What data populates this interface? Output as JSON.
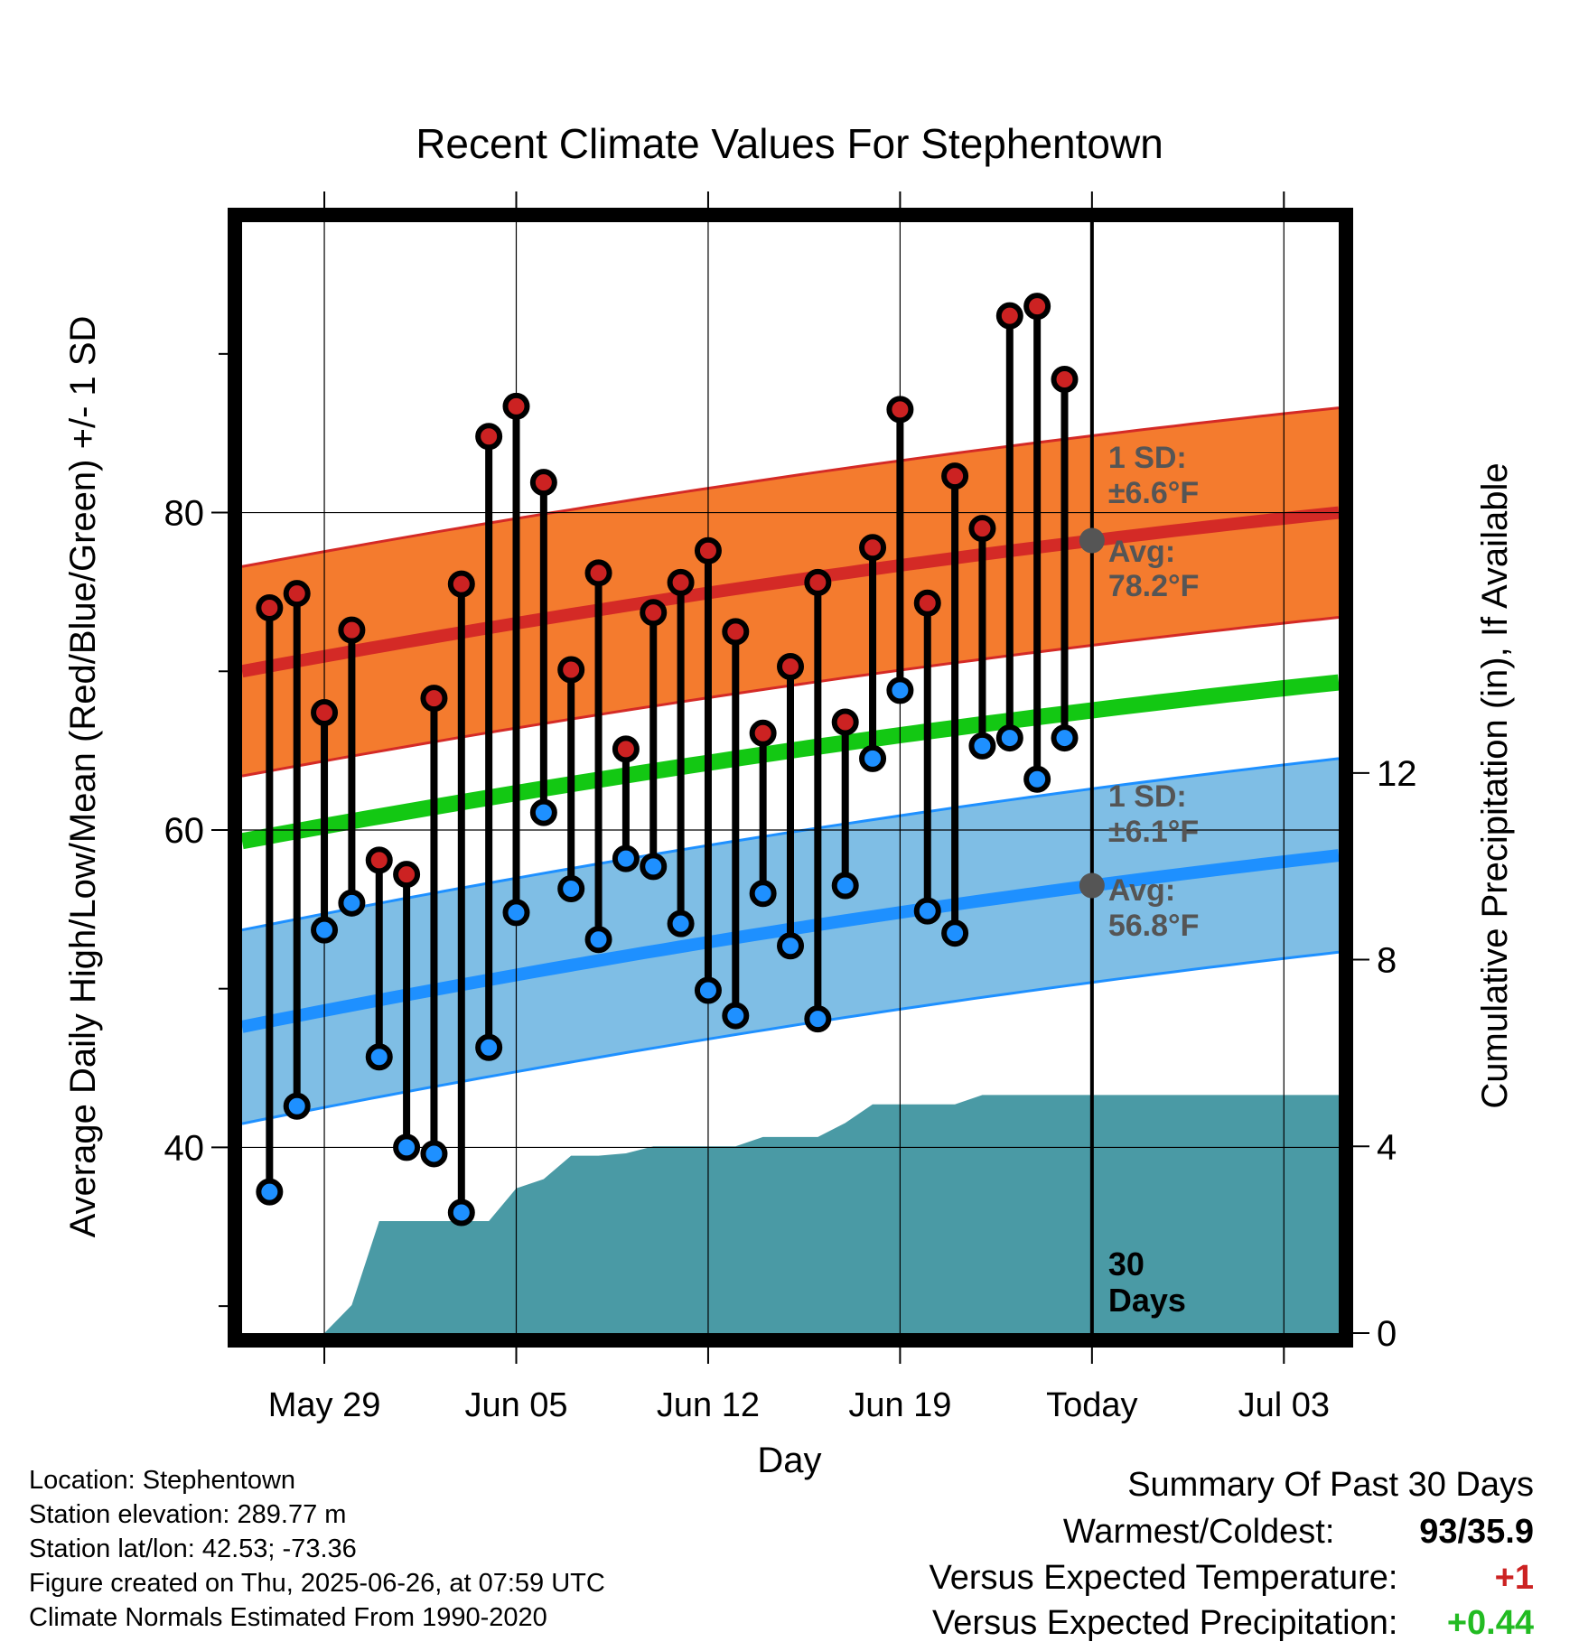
{
  "chart_data": {
    "type": "line",
    "title": "Recent Climate Values For Stephentown",
    "xlabel": "Day",
    "ylabel": "Average Daily High/Low/Mean (Red/Blue/Green) +/- 1 SD",
    "y2label": "Cumulative Precipitation (in), If Available",
    "ylim": [
      28.3,
      98.3
    ],
    "y2lim": [
      0,
      23.8
    ],
    "y_ticks": [
      "40",
      "60",
      "80"
    ],
    "y2_ticks": [
      "0",
      "4",
      "8",
      "12"
    ],
    "x_range": [
      "2025-05-26",
      "2025-07-05"
    ],
    "x_ticks": [
      {
        "date": "2025-05-29",
        "label": "May 29"
      },
      {
        "date": "2025-06-05",
        "label": "Jun 05"
      },
      {
        "date": "2025-06-12",
        "label": "Jun 12"
      },
      {
        "date": "2025-06-19",
        "label": "Jun 19"
      },
      {
        "date": "2025-06-26",
        "label": "Today"
      },
      {
        "date": "2025-07-03",
        "label": "Jul 03"
      }
    ],
    "today": "2025-06-26",
    "grid": true,
    "normals": {
      "high_avg": [
        70.0,
        80.0
      ],
      "high_sd": 6.6,
      "low_avg": [
        47.6,
        58.4
      ],
      "low_sd": 6.1,
      "mean_avg": [
        59.3,
        69.3
      ]
    },
    "observations": {
      "dates": [
        "2025-05-27",
        "2025-05-28",
        "2025-05-29",
        "2025-05-30",
        "2025-05-31",
        "2025-06-01",
        "2025-06-02",
        "2025-06-03",
        "2025-06-04",
        "2025-06-05",
        "2025-06-06",
        "2025-06-07",
        "2025-06-08",
        "2025-06-09",
        "2025-06-10",
        "2025-06-11",
        "2025-06-12",
        "2025-06-13",
        "2025-06-14",
        "2025-06-15",
        "2025-06-16",
        "2025-06-17",
        "2025-06-18",
        "2025-06-19",
        "2025-06-20",
        "2025-06-21",
        "2025-06-22",
        "2025-06-23",
        "2025-06-24",
        "2025-06-25"
      ],
      "highs": [
        74,
        74.9,
        67.4,
        72.6,
        58.1,
        57.2,
        68.3,
        75.5,
        84.8,
        86.7,
        81.9,
        70.1,
        76.2,
        65.1,
        73.7,
        75.6,
        77.6,
        72.5,
        66.1,
        70.3,
        75.6,
        66.8,
        77.8,
        86.5,
        74.3,
        82.3,
        79,
        92.4,
        93,
        88.4
      ],
      "lows": [
        37.2,
        42.6,
        53.7,
        55.4,
        45.7,
        40,
        39.6,
        35.9,
        46.3,
        54.8,
        61.1,
        56.3,
        53.1,
        58.2,
        57.7,
        54.1,
        49.9,
        48.3,
        56,
        52.7,
        48.1,
        56.5,
        64.5,
        68.8,
        54.9,
        53.5,
        65.3,
        65.8,
        63.2,
        65.8
      ]
    },
    "precipitation": {
      "dates": [
        "2025-05-29",
        "2025-05-30",
        "2025-05-31",
        "2025-06-01",
        "2025-06-02",
        "2025-06-03",
        "2025-06-04",
        "2025-06-05",
        "2025-06-06",
        "2025-06-07",
        "2025-06-08",
        "2025-06-09",
        "2025-06-10",
        "2025-06-11",
        "2025-06-12",
        "2025-06-13",
        "2025-06-14",
        "2025-06-15",
        "2025-06-16",
        "2025-06-17",
        "2025-06-18",
        "2025-06-19",
        "2025-06-20",
        "2025-06-21",
        "2025-06-22",
        "2025-06-23",
        "2025-06-24",
        "2025-06-25",
        "2025-06-26",
        "2025-07-05"
      ],
      "cumulative": [
        0,
        0.6,
        2.4,
        2.4,
        2.4,
        2.4,
        2.4,
        3.1,
        3.3,
        3.8,
        3.8,
        3.85,
        4.0,
        4.0,
        4.0,
        4.0,
        4.2,
        4.2,
        4.2,
        4.5,
        4.9,
        4.9,
        4.9,
        4.9,
        5.1,
        5.1,
        5.1,
        5.1,
        5.1,
        5.1
      ]
    },
    "annotations": {
      "high_sd_label": "1 SD:",
      "high_sd_value": "±6.6°F",
      "high_avg_label": "Avg:",
      "high_avg_value": "78.2°F",
      "low_sd_label": "1 SD:",
      "low_sd_value": "±6.1°F",
      "low_avg_label": "Avg:",
      "low_avg_value": "56.8°F",
      "days_line1": "30",
      "days_line2": "Days"
    },
    "colors": {
      "high_band": "#f47b2e",
      "high_line": "#d42a26",
      "low_band": "#7fbee5",
      "low_line": "#1e90ff",
      "mean_line": "#13c813",
      "precip": "#4a9aa5",
      "high_marker": "#cc2222",
      "low_marker": "#1e90ff",
      "avg_marker": "#555555"
    }
  },
  "info": {
    "location": "Location: Stephentown",
    "elevation": "Station elevation: 289.77 m",
    "latlon": "Station lat/lon: 42.53; -73.36",
    "created": "Figure created on Thu, 2025-06-26, at 07:59 UTC",
    "normals": "Climate Normals Estimated From 1990-2020"
  },
  "summary": {
    "title": "Summary Of Past 30 Days",
    "warmest_label": "Warmest/Coldest:",
    "warmest_value": "93/35.9",
    "temp_label": "Versus Expected Temperature:",
    "temp_value": "+1",
    "precip_label": "Versus Expected Precipitation:",
    "precip_value": "+0.44",
    "temp_color": "#cc2222",
    "precip_color": "#22bb22"
  }
}
